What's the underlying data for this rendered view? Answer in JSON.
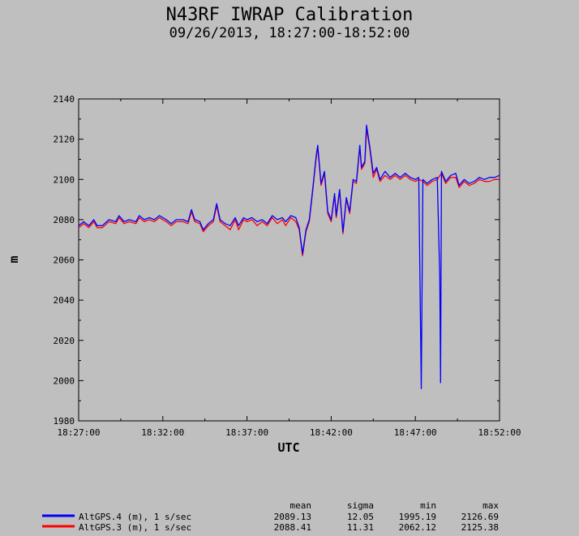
{
  "chart_data": {
    "type": "line",
    "title": "N43RF IWRAP Calibration",
    "subtitle": "09/26/2013, 18:27:00-18:52:00",
    "xlabel": "UTC",
    "ylabel": "m",
    "ylim": [
      1980,
      2140
    ],
    "xlim": [
      "18:27:00",
      "18:52:00"
    ],
    "y_ticks": [
      1980,
      2000,
      2020,
      2040,
      2060,
      2080,
      2100,
      2120,
      2140
    ],
    "x_ticks": [
      "18:27:00",
      "18:32:00",
      "18:37:00",
      "18:42:00",
      "18:47:00",
      "18:52:00"
    ],
    "x_unit": "minutes after 18:27:00",
    "grid": false,
    "legend_position": "bottom-left",
    "stats_headers": [
      "mean",
      "sigma",
      "min",
      "max"
    ],
    "series": [
      {
        "name": "AltGPS.4 (m), 1 s/sec",
        "color": "#0000ff",
        "stats": [
          "2089.13",
          "12.05",
          "1995.19",
          "2126.69"
        ],
        "points": [
          [
            0,
            2077
          ],
          [
            0.3,
            2079
          ],
          [
            0.6,
            2077
          ],
          [
            0.9,
            2080
          ],
          [
            1.1,
            2077
          ],
          [
            1.4,
            2077
          ],
          [
            1.8,
            2080
          ],
          [
            2.2,
            2079
          ],
          [
            2.4,
            2082
          ],
          [
            2.7,
            2079
          ],
          [
            3.0,
            2080
          ],
          [
            3.4,
            2079
          ],
          [
            3.6,
            2082
          ],
          [
            3.9,
            2080
          ],
          [
            4.2,
            2081
          ],
          [
            4.5,
            2080
          ],
          [
            4.8,
            2082
          ],
          [
            5.2,
            2080
          ],
          [
            5.5,
            2078
          ],
          [
            5.8,
            2080
          ],
          [
            6.2,
            2080
          ],
          [
            6.5,
            2079
          ],
          [
            6.7,
            2085
          ],
          [
            6.9,
            2080
          ],
          [
            7.2,
            2079
          ],
          [
            7.4,
            2075
          ],
          [
            7.7,
            2078
          ],
          [
            8.0,
            2080
          ],
          [
            8.2,
            2088
          ],
          [
            8.4,
            2080
          ],
          [
            8.7,
            2078
          ],
          [
            9.0,
            2077
          ],
          [
            9.3,
            2081
          ],
          [
            9.5,
            2077
          ],
          [
            9.8,
            2081
          ],
          [
            10.0,
            2080
          ],
          [
            10.3,
            2081
          ],
          [
            10.6,
            2079
          ],
          [
            10.9,
            2080
          ],
          [
            11.2,
            2078
          ],
          [
            11.5,
            2082
          ],
          [
            11.8,
            2080
          ],
          [
            12.1,
            2081
          ],
          [
            12.3,
            2079
          ],
          [
            12.6,
            2082
          ],
          [
            12.9,
            2081
          ],
          [
            13.1,
            2076
          ],
          [
            13.3,
            2063
          ],
          [
            13.5,
            2075
          ],
          [
            13.7,
            2080
          ],
          [
            13.9,
            2095
          ],
          [
            14.1,
            2111
          ],
          [
            14.2,
            2117
          ],
          [
            14.4,
            2098
          ],
          [
            14.6,
            2104
          ],
          [
            14.8,
            2084
          ],
          [
            15.0,
            2080
          ],
          [
            15.2,
            2093
          ],
          [
            15.3,
            2082
          ],
          [
            15.5,
            2095
          ],
          [
            15.7,
            2074
          ],
          [
            15.9,
            2091
          ],
          [
            16.1,
            2084
          ],
          [
            16.3,
            2100
          ],
          [
            16.5,
            2099
          ],
          [
            16.7,
            2117
          ],
          [
            16.8,
            2106
          ],
          [
            17.0,
            2109
          ],
          [
            17.1,
            2127
          ],
          [
            17.3,
            2116
          ],
          [
            17.5,
            2103
          ],
          [
            17.7,
            2106
          ],
          [
            17.9,
            2100
          ],
          [
            18.2,
            2104
          ],
          [
            18.5,
            2101
          ],
          [
            18.8,
            2103
          ],
          [
            19.1,
            2101
          ],
          [
            19.4,
            2103
          ],
          [
            19.7,
            2101
          ],
          [
            20.0,
            2100
          ],
          [
            20.2,
            2101
          ],
          [
            20.35,
            1996
          ],
          [
            20.45,
            2100
          ],
          [
            20.7,
            2098
          ],
          [
            21.0,
            2100
          ],
          [
            21.3,
            2101
          ],
          [
            21.45,
            2052
          ],
          [
            21.5,
            1999
          ],
          [
            21.55,
            2104
          ],
          [
            21.8,
            2099
          ],
          [
            22.1,
            2102
          ],
          [
            22.4,
            2103
          ],
          [
            22.6,
            2097
          ],
          [
            22.9,
            2100
          ],
          [
            23.2,
            2098
          ],
          [
            23.5,
            2099
          ],
          [
            23.8,
            2101
          ],
          [
            24.1,
            2100
          ],
          [
            24.4,
            2101
          ],
          [
            24.7,
            2101
          ],
          [
            25.0,
            2102
          ]
        ]
      },
      {
        "name": "AltGPS.3 (m), 1 s/sec",
        "color": "#ff0000",
        "stats": [
          "2088.41",
          "11.31",
          "2062.12",
          "2125.38"
        ],
        "points": [
          [
            0,
            2076
          ],
          [
            0.3,
            2078
          ],
          [
            0.6,
            2076
          ],
          [
            0.9,
            2079
          ],
          [
            1.1,
            2076
          ],
          [
            1.4,
            2076
          ],
          [
            1.8,
            2079
          ],
          [
            2.2,
            2078
          ],
          [
            2.4,
            2081
          ],
          [
            2.7,
            2078
          ],
          [
            3.0,
            2079
          ],
          [
            3.4,
            2078
          ],
          [
            3.6,
            2081
          ],
          [
            3.9,
            2079
          ],
          [
            4.2,
            2080
          ],
          [
            4.5,
            2079
          ],
          [
            4.8,
            2081
          ],
          [
            5.2,
            2079
          ],
          [
            5.5,
            2077
          ],
          [
            5.8,
            2079
          ],
          [
            6.2,
            2079
          ],
          [
            6.5,
            2078
          ],
          [
            6.7,
            2084
          ],
          [
            6.9,
            2079
          ],
          [
            7.2,
            2078
          ],
          [
            7.4,
            2074
          ],
          [
            7.7,
            2077
          ],
          [
            8.0,
            2079
          ],
          [
            8.2,
            2087
          ],
          [
            8.4,
            2079
          ],
          [
            8.7,
            2077
          ],
          [
            9.0,
            2075
          ],
          [
            9.3,
            2080
          ],
          [
            9.5,
            2075
          ],
          [
            9.8,
            2080
          ],
          [
            10.0,
            2079
          ],
          [
            10.3,
            2080
          ],
          [
            10.6,
            2077
          ],
          [
            10.9,
            2079
          ],
          [
            11.2,
            2077
          ],
          [
            11.5,
            2081
          ],
          [
            11.8,
            2078
          ],
          [
            12.1,
            2080
          ],
          [
            12.3,
            2077
          ],
          [
            12.6,
            2081
          ],
          [
            12.9,
            2079
          ],
          [
            13.1,
            2075
          ],
          [
            13.3,
            2062
          ],
          [
            13.5,
            2074
          ],
          [
            13.7,
            2079
          ],
          [
            13.9,
            2094
          ],
          [
            14.1,
            2110
          ],
          [
            14.2,
            2116
          ],
          [
            14.4,
            2097
          ],
          [
            14.6,
            2103
          ],
          [
            14.8,
            2083
          ],
          [
            15.0,
            2079
          ],
          [
            15.2,
            2092
          ],
          [
            15.3,
            2081
          ],
          [
            15.5,
            2094
          ],
          [
            15.7,
            2073
          ],
          [
            15.9,
            2090
          ],
          [
            16.1,
            2083
          ],
          [
            16.3,
            2099
          ],
          [
            16.5,
            2098
          ],
          [
            16.7,
            2116
          ],
          [
            16.8,
            2105
          ],
          [
            17.0,
            2108
          ],
          [
            17.1,
            2125
          ],
          [
            17.3,
            2115
          ],
          [
            17.5,
            2101
          ],
          [
            17.7,
            2105
          ],
          [
            17.9,
            2099
          ],
          [
            18.2,
            2102
          ],
          [
            18.5,
            2100
          ],
          [
            18.8,
            2102
          ],
          [
            19.1,
            2100
          ],
          [
            19.4,
            2102
          ],
          [
            19.7,
            2100
          ],
          [
            20.0,
            2099
          ],
          [
            20.2,
            2100
          ],
          [
            20.45,
            2099
          ],
          [
            20.7,
            2097
          ],
          [
            21.0,
            2099
          ],
          [
            21.3,
            2100
          ],
          [
            21.55,
            2103
          ],
          [
            21.8,
            2098
          ],
          [
            22.1,
            2101
          ],
          [
            22.4,
            2101
          ],
          [
            22.6,
            2096
          ],
          [
            22.9,
            2099
          ],
          [
            23.2,
            2097
          ],
          [
            23.5,
            2098
          ],
          [
            23.8,
            2100
          ],
          [
            24.1,
            2099
          ],
          [
            24.4,
            2099
          ],
          [
            24.7,
            2100
          ],
          [
            25.0,
            2100
          ]
        ]
      }
    ]
  }
}
